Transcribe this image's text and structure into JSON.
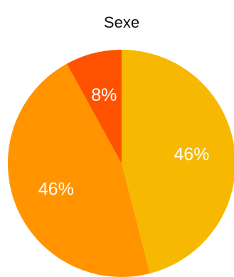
{
  "chart_data": {
    "type": "pie",
    "title": "Sexe",
    "slices": [
      {
        "value": 46,
        "label": "46%",
        "color": "#F6B800"
      },
      {
        "value": 46,
        "label": "46%",
        "color": "#FF9400"
      },
      {
        "value": 8,
        "label": "8%",
        "color": "#FF5200"
      }
    ],
    "start_angle_deg": 0,
    "direction": "clockwise",
    "legend": "none"
  }
}
